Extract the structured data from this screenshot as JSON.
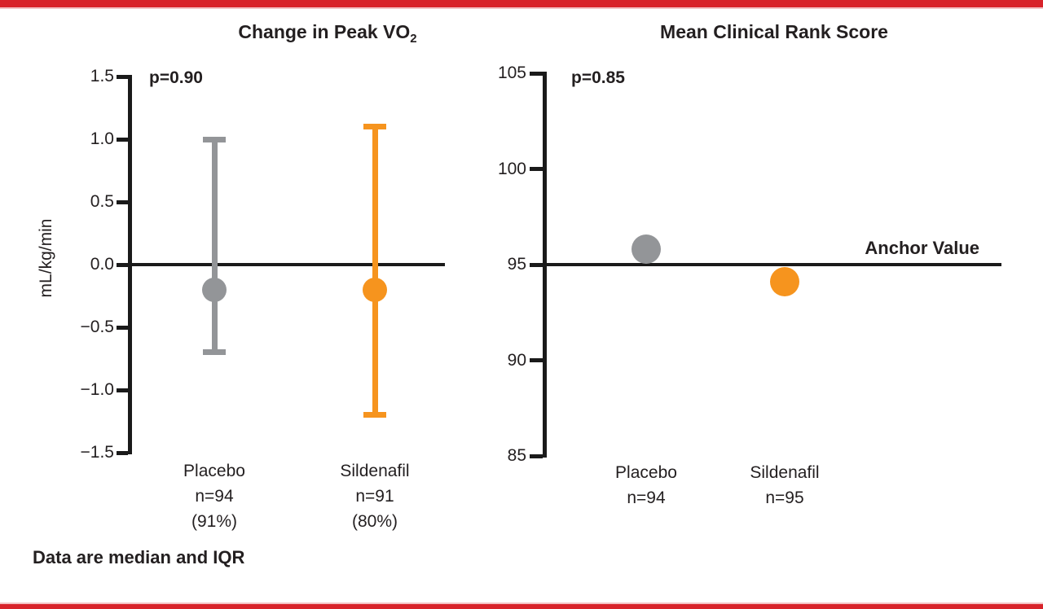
{
  "footer": {
    "note": "Data are median and IQR"
  },
  "colors": {
    "accent_red": "#d8232a",
    "placebo_gray": "#939598",
    "sildenafil_orange": "#f6941e",
    "axis_black": "#1a1a1a"
  },
  "chart_data": [
    {
      "type": "scatter",
      "subtype": "median-with-iqr-error-bars",
      "title_main": "Change in Peak VO",
      "title_sub": "2",
      "p_value": "p=0.90",
      "ylabel": "mL/kg/min",
      "ylim": [
        -1.5,
        1.5
      ],
      "yticks": [
        1.5,
        1.0,
        0.5,
        0.0,
        -0.5,
        -1.0,
        -1.5
      ],
      "ytick_labels": [
        "1.5",
        "1.0",
        "0.5",
        "0.0",
        "−0.5",
        "−1.0",
        "−1.5"
      ],
      "baseline_value": 0.0,
      "grid": false,
      "series": [
        {
          "name": "Placebo",
          "n": "n=94",
          "pct": "(91%)",
          "median": -0.2,
          "iqr_low": -0.7,
          "iqr_high": 1.0,
          "color": "#939598"
        },
        {
          "name": "Sildenafil",
          "n": "n=91",
          "pct": "(80%)",
          "median": -0.2,
          "iqr_low": -1.2,
          "iqr_high": 1.1,
          "color": "#f6941e"
        }
      ]
    },
    {
      "type": "scatter",
      "subtype": "single-point-per-group",
      "title": "Mean Clinical Rank Score",
      "p_value": "p=0.85",
      "ylim": [
        85,
        105
      ],
      "yticks": [
        105,
        100,
        95,
        90,
        85
      ],
      "ytick_labels": [
        "105",
        "100",
        "95",
        "90",
        "85"
      ],
      "anchor_value": 95,
      "anchor_label": "Anchor Value",
      "grid": false,
      "series": [
        {
          "name": "Placebo",
          "n": "n=94",
          "value": 95.8,
          "color": "#939598"
        },
        {
          "name": "Sildenafil",
          "n": "n=95",
          "value": 94.1,
          "color": "#f6941e"
        }
      ]
    }
  ]
}
